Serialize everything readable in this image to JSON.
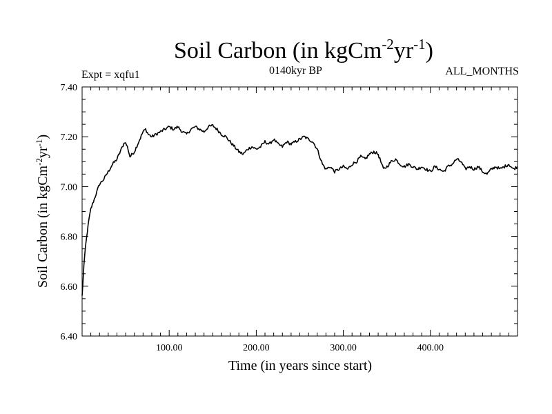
{
  "chart_data": {
    "type": "line",
    "title": "Soil Carbon (in kgCm-2yr-1)",
    "title_parts": {
      "main": "Soil Carbon (in kgCm",
      "sup1": "-2",
      "mid": "yr",
      "sup2": "-1",
      "end": ")"
    },
    "annotations": {
      "left": "Expt = xqfu1",
      "center": "0140kyr BP",
      "right": "ALL_MONTHS"
    },
    "xlabel": "Time (in years since start)",
    "ylabel": "Soil Carbon (in kgCm-2yr-1)",
    "ylabel_parts": {
      "main": "Soil Carbon (in kgCm",
      "sup1": "-2",
      "mid": "yr",
      "sup2": "-1",
      "end": ")"
    },
    "xlim": [
      0,
      500
    ],
    "ylim": [
      6.4,
      7.4
    ],
    "xticks": [
      100,
      200,
      300,
      400
    ],
    "xtick_labels": [
      "100.00",
      "200.00",
      "300.00",
      "400.00"
    ],
    "yticks": [
      6.4,
      6.6,
      6.8,
      7.0,
      7.2,
      7.4
    ],
    "ytick_labels": [
      "6.40",
      "6.60",
      "6.80",
      "7.00",
      "7.20",
      "7.40"
    ],
    "grid": false,
    "series": [
      {
        "name": "Soil Carbon",
        "color": "#000000",
        "noise": 0.006,
        "x": [
          0,
          2,
          4,
          6,
          8,
          10,
          13,
          16,
          20,
          25,
          30,
          35,
          40,
          45,
          49,
          52,
          55,
          60,
          65,
          70,
          73,
          76,
          80,
          85,
          90,
          95,
          100,
          105,
          110,
          115,
          120,
          125,
          130,
          135,
          140,
          145,
          150,
          155,
          160,
          165,
          170,
          175,
          180,
          185,
          190,
          195,
          200,
          205,
          210,
          215,
          220,
          225,
          230,
          235,
          240,
          245,
          250,
          255,
          260,
          265,
          270,
          273,
          276,
          280,
          285,
          290,
          295,
          300,
          305,
          310,
          315,
          320,
          325,
          330,
          335,
          340,
          343,
          346,
          350,
          355,
          360,
          365,
          370,
          375,
          380,
          385,
          390,
          395,
          400,
          405,
          410,
          415,
          420,
          425,
          430,
          435,
          440,
          445,
          450,
          455,
          460,
          465,
          470,
          475,
          480,
          485,
          490,
          495,
          500
        ],
        "y": [
          6.56,
          6.68,
          6.76,
          6.82,
          6.87,
          6.91,
          6.94,
          6.97,
          7.01,
          7.03,
          7.06,
          7.09,
          7.11,
          7.15,
          7.18,
          7.16,
          7.12,
          7.14,
          7.18,
          7.22,
          7.23,
          7.21,
          7.2,
          7.21,
          7.22,
          7.23,
          7.24,
          7.23,
          7.24,
          7.22,
          7.21,
          7.23,
          7.24,
          7.23,
          7.22,
          7.24,
          7.245,
          7.23,
          7.21,
          7.2,
          7.18,
          7.16,
          7.14,
          7.13,
          7.15,
          7.16,
          7.15,
          7.16,
          7.18,
          7.17,
          7.19,
          7.17,
          7.16,
          7.18,
          7.17,
          7.18,
          7.19,
          7.2,
          7.19,
          7.18,
          7.15,
          7.12,
          7.09,
          7.07,
          7.08,
          7.06,
          7.07,
          7.08,
          7.07,
          7.09,
          7.1,
          7.12,
          7.11,
          7.13,
          7.14,
          7.13,
          7.1,
          7.07,
          7.08,
          7.1,
          7.11,
          7.09,
          7.08,
          7.09,
          7.08,
          7.07,
          7.08,
          7.07,
          7.06,
          7.08,
          7.07,
          7.06,
          7.08,
          7.09,
          7.11,
          7.1,
          7.07,
          7.08,
          7.07,
          7.08,
          7.06,
          7.05,
          7.07,
          7.08,
          7.07,
          7.08,
          7.09,
          7.07,
          7.08
        ]
      }
    ]
  }
}
